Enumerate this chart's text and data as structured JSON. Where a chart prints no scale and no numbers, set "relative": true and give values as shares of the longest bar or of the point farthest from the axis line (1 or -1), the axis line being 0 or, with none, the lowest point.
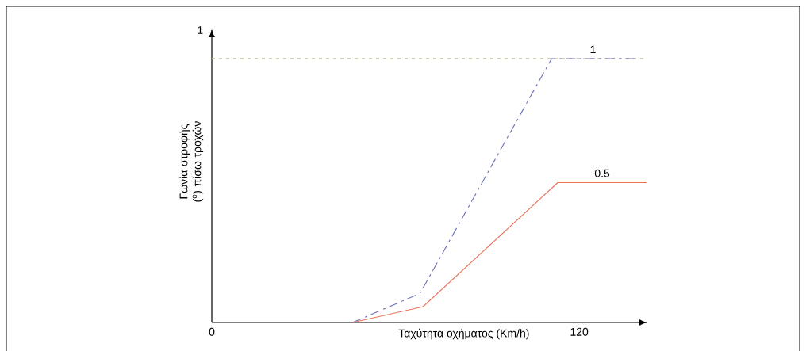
{
  "chart_data": {
    "type": "line",
    "xlabel": "Ταχύτητα οχήματος (Km/h)",
    "ylabel": "Γωνία στροφής ($^{o}$) πίσω τροχών",
    "relative": true,
    "xlim": [
      0,
      142
    ],
    "xticks": [
      0,
      120
    ],
    "annotations": [
      "1"
    ],
    "ref_lines": [
      {
        "axis": "y",
        "value": 1,
        "color": "#c8c4a0",
        "line_style": "dotted"
      }
    ],
    "series": [
      {
        "name": "1",
        "color": "#6a6fb8",
        "line_style": "dashed",
        "x": [
          46,
          68,
          111,
          138
        ],
        "values": [
          0,
          0.11,
          1,
          1
        ]
      },
      {
        "name": "0.5",
        "color": "#e8735a",
        "line_style": "solid",
        "x": [
          46,
          69,
          113,
          142
        ],
        "values": [
          0,
          0.06,
          0.53,
          0.53
        ]
      }
    ],
    "legend": false,
    "grid": false,
    "marker": "none"
  }
}
